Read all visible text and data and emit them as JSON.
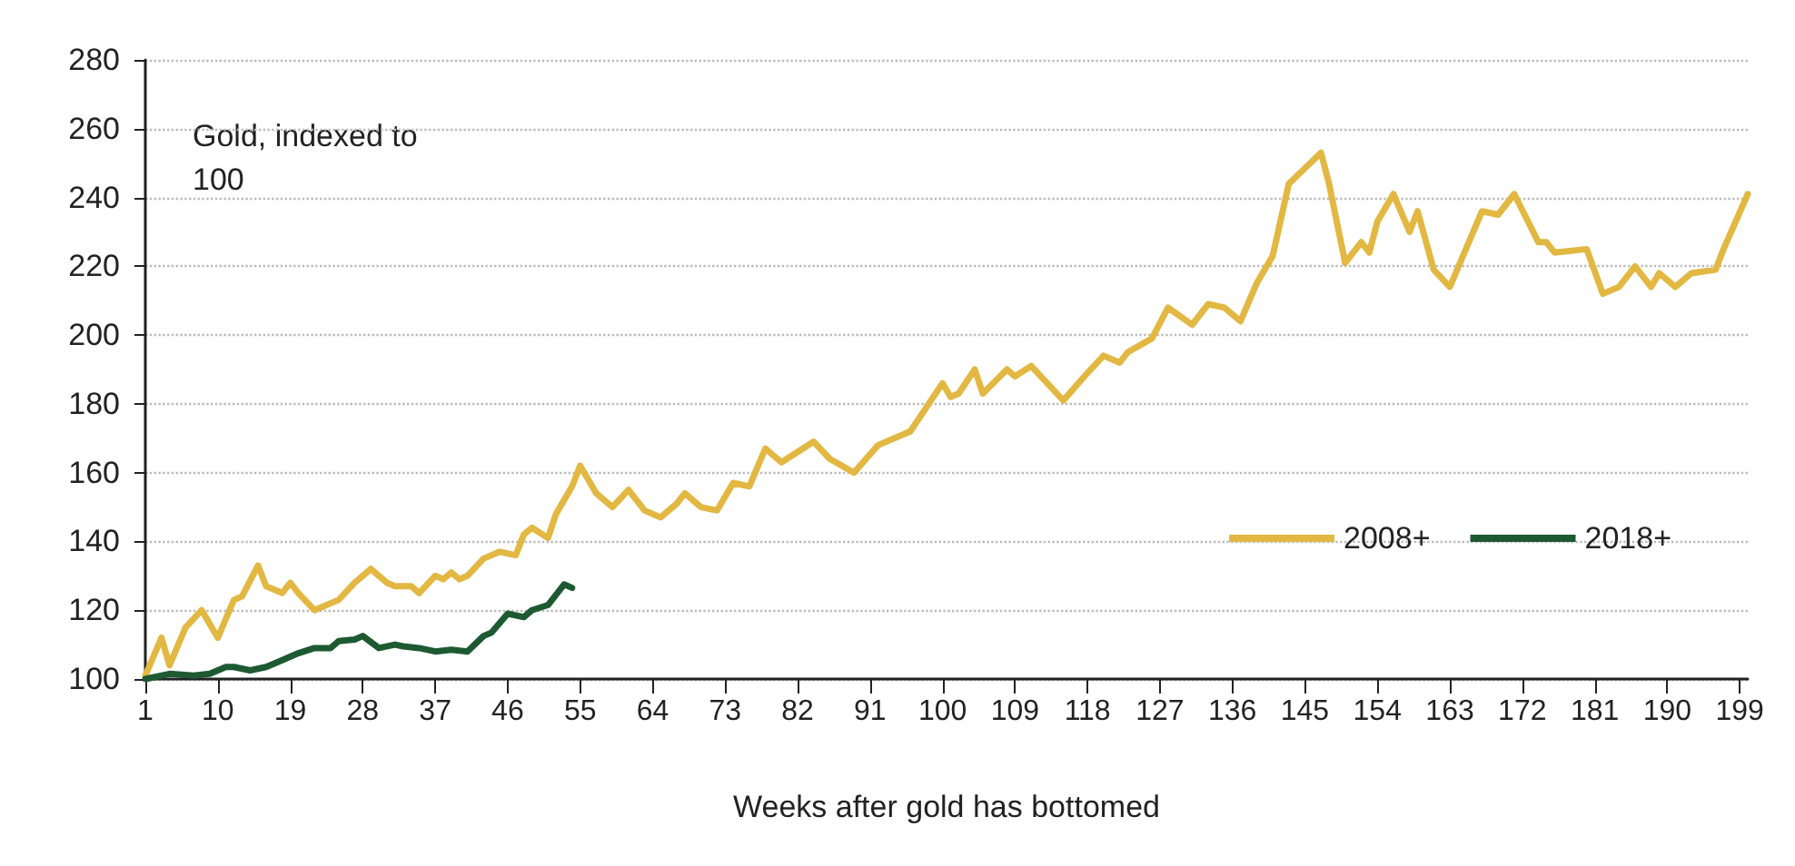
{
  "chart_data": {
    "type": "line",
    "xlabel": "Weeks after gold has bottomed",
    "annotations": [
      "Gold, indexed to 100"
    ],
    "xlim": [
      1,
      200
    ],
    "xticks": [
      1,
      10,
      19,
      28,
      37,
      46,
      55,
      64,
      73,
      82,
      91,
      100,
      109,
      118,
      127,
      136,
      145,
      154,
      163,
      172,
      181,
      190,
      199
    ],
    "ylim": [
      100,
      280
    ],
    "yticks": [
      100,
      120,
      140,
      160,
      180,
      200,
      220,
      240,
      260,
      280
    ],
    "grid": "y",
    "legend": "right",
    "marker": "none",
    "line_style": "solid",
    "series": [
      {
        "name": "2008+",
        "color": "#e2b842",
        "x": [
          1,
          3,
          4,
          6,
          8,
          10,
          12,
          13,
          15,
          16,
          18,
          19,
          20,
          22,
          24,
          25,
          27,
          29,
          31,
          32,
          34,
          35,
          37,
          38,
          39,
          40,
          41,
          43,
          45,
          47,
          48,
          49,
          51,
          52,
          54,
          55,
          57,
          59,
          61,
          63,
          65,
          67,
          68,
          70,
          72,
          74,
          76,
          78,
          80,
          84,
          86,
          89,
          92,
          96,
          100,
          101,
          102,
          104,
          105,
          108,
          109,
          111,
          115,
          118,
          120,
          122,
          123,
          126,
          128,
          131,
          133,
          135,
          137,
          139,
          141,
          143,
          147,
          148,
          150,
          152,
          153,
          154,
          156,
          158,
          159,
          161,
          163,
          165,
          167,
          169,
          171,
          174,
          175,
          176,
          180,
          182,
          184,
          186,
          188,
          189,
          191,
          193,
          196,
          197,
          200
        ],
        "values": [
          101,
          112,
          104,
          115,
          120,
          112,
          123,
          124,
          133,
          127,
          125,
          128,
          125,
          120,
          122,
          123,
          128,
          132,
          128,
          127,
          127,
          125,
          130,
          129,
          131,
          129,
          130,
          135,
          137,
          136,
          142,
          144,
          141,
          148,
          156,
          162,
          154,
          150,
          155,
          149,
          147,
          151,
          154,
          150,
          149,
          157,
          156,
          167,
          163,
          169,
          164,
          160,
          168,
          172,
          186,
          182,
          183,
          190,
          183,
          190,
          188,
          191,
          181,
          189,
          194,
          192,
          195,
          199,
          208,
          203,
          209,
          208,
          204,
          215,
          223,
          244,
          253,
          244,
          221,
          227,
          224,
          233,
          241,
          230,
          236,
          219,
          214,
          225,
          236,
          235,
          241,
          227,
          227,
          224,
          225,
          212,
          214,
          220,
          214,
          218,
          214,
          218,
          219,
          225,
          241
        ]
      },
      {
        "name": "2018+",
        "color": "#1d5a32",
        "x": [
          1,
          4,
          7,
          9,
          11,
          12,
          14,
          16,
          18,
          20,
          22,
          24,
          25,
          27,
          28,
          30,
          32,
          33,
          35,
          37,
          39,
          41,
          43,
          44,
          46,
          48,
          49,
          51,
          53,
          54
        ],
        "values": [
          100,
          101.5,
          101,
          101.5,
          103.5,
          103.5,
          102.5,
          103.5,
          105.5,
          107.5,
          109,
          109,
          111,
          111.5,
          112.5,
          109,
          110,
          109.5,
          109,
          108,
          108.5,
          108,
          112.5,
          113.5,
          119,
          118,
          120,
          121.5,
          127.5,
          126.5
        ]
      }
    ]
  }
}
